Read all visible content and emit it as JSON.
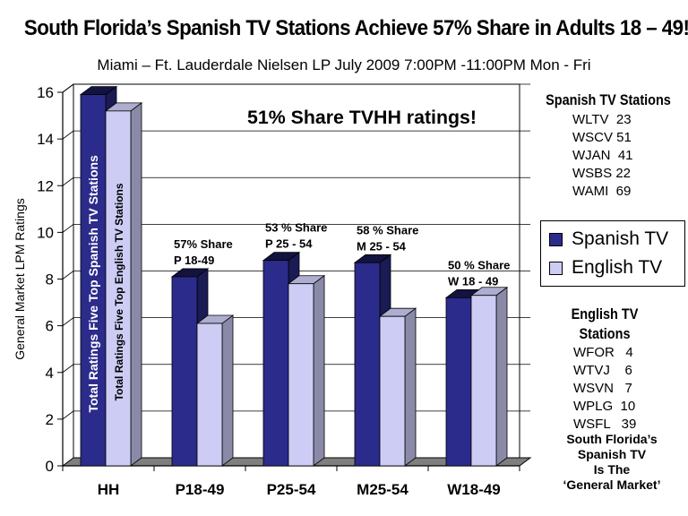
{
  "title": "South Florida’s Spanish TV Stations Achieve 57% Share in Adults 18 – 49!",
  "subtitle": "Miami – Ft. Lauderdale Nielsen LP July 2009 7:00PM -11:00PM Mon - Fri",
  "colors": {
    "spanish": "#2b2b8c",
    "english": "#ccccf5",
    "floor": "#7f7f7f"
  },
  "chart_data": {
    "type": "bar",
    "categories": [
      "HH",
      "P18-49",
      "P25-54",
      "M25-54",
      "W18-49"
    ],
    "series": [
      {
        "name": "Spanish TV",
        "values": [
          15.9,
          8.1,
          8.8,
          8.7,
          7.2
        ]
      },
      {
        "name": "English TV",
        "values": [
          15.2,
          6.1,
          7.8,
          6.4,
          7.3
        ]
      }
    ],
    "ylabel": "General Market LPM Ratings",
    "ylim": [
      0,
      16
    ],
    "yticks": [
      0,
      2,
      4,
      6,
      8,
      10,
      12,
      14,
      16
    ],
    "bar_labels": [
      "Total Ratings Five Top Spanish TV Stations",
      "Total Ratings Five Top English TV Stations"
    ],
    "share_annotations": [
      {
        "category": "P18-49",
        "line1": "57% Share",
        "line2": "P 18-49"
      },
      {
        "category": "P25-54",
        "line1": "53 % Share",
        "line2": "P 25 - 54"
      },
      {
        "category": "M25-54",
        "line1": "58 % Share",
        "line2": "M 25 - 54"
      },
      {
        "category": "W18-49",
        "line1": "50 % Share",
        "line2": "W 18 - 49"
      }
    ],
    "headline_annotation": "51% Share TVHH ratings!"
  },
  "spanish_stations": {
    "heading": "Spanish TV Stations",
    "items": [
      "WLTV  23",
      "WSCV 51",
      "WJAN  41",
      "WSBS 22",
      "WAMI  69"
    ]
  },
  "english_stations": {
    "heading_line1": "English TV",
    "heading_line2": "Stations",
    "items": [
      "WFOR   4",
      "WTVJ    6",
      "WSVN   7",
      "WPLG  10",
      "WSFL   39"
    ]
  },
  "legend": {
    "spanish_label": "Spanish TV",
    "english_label": "English TV"
  },
  "footer_note": [
    "South Florida’s",
    "Spanish TV",
    "Is The",
    "‘General Market’"
  ]
}
